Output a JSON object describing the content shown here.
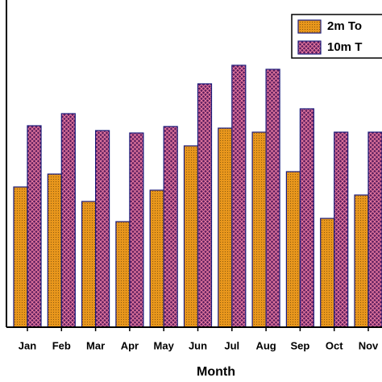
{
  "chart_data": {
    "type": "bar",
    "x_label": "Month",
    "categories": [
      "Jan",
      "Feb",
      "Mar",
      "Apr",
      "May",
      "Jun",
      "Jul",
      "Aug",
      "Sep",
      "Oct",
      "Nov"
    ],
    "series": [
      {
        "name": "2m To",
        "color": "#e8961c",
        "values": [
          174,
          190,
          156,
          131,
          170,
          225,
          247,
          242,
          193,
          135,
          164
        ]
      },
      {
        "name": "10m T",
        "color": "#5b1c5e",
        "values": [
          250,
          265,
          244,
          241,
          249,
          302,
          325,
          320,
          271,
          242,
          242
        ]
      }
    ],
    "ylim": [
      0,
      406
    ]
  }
}
